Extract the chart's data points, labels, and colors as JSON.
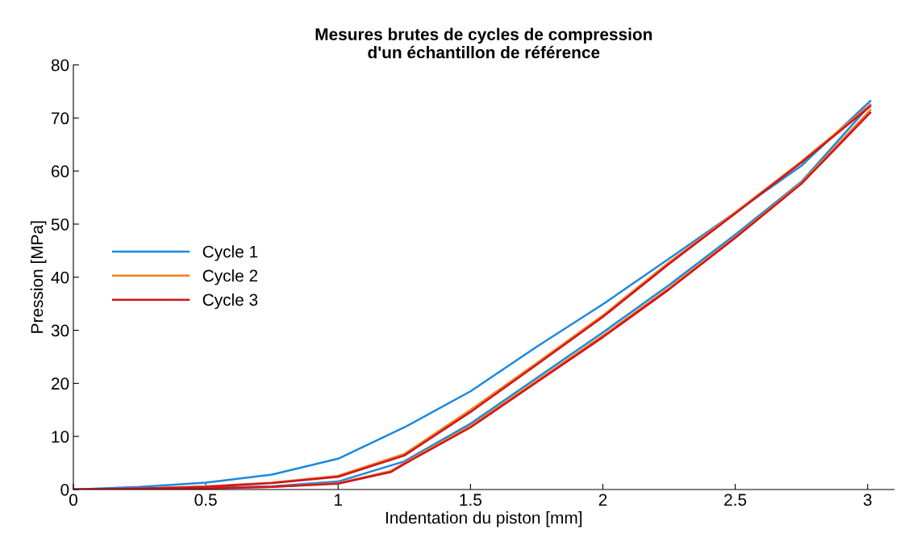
{
  "chart_data": {
    "type": "line",
    "title": "Mesures brutes de cycles de compression\nd'un échantillon de référence",
    "xlabel": "Indentation du piston [mm]",
    "ylabel": "Pression [MPa]",
    "xlim": [
      0,
      3.1
    ],
    "xticks": [
      0,
      0.5,
      1,
      1.5,
      2,
      2.5,
      3
    ],
    "ylim": [
      0,
      80
    ],
    "yticks": [
      0,
      10,
      20,
      30,
      40,
      50,
      60,
      70,
      80
    ],
    "grid": false,
    "legend": "left",
    "marker": "none",
    "line_style": "solid",
    "series": [
      {
        "name": "Cycle 1",
        "color": "#1a88e0",
        "x": [
          0,
          0.25,
          0.5,
          0.75,
          1,
          1.25,
          1.5,
          1.75,
          2,
          2.25,
          2.5,
          2.75,
          3.01
        ],
        "values": [
          0,
          0.5,
          1.3,
          2.8,
          5.8,
          11.7,
          18.5,
          26.9,
          34.9,
          43.5,
          52.2,
          61,
          73.2
        ]
      },
      {
        "color": "#1a88e0",
        "x": [
          0,
          0.25,
          0.5,
          0.75,
          1,
          1.25,
          1.5,
          1.75,
          2,
          2.25,
          2.5,
          2.75,
          3.01
        ],
        "values": [
          0,
          0.1,
          0.3,
          0.6,
          1.5,
          5.3,
          12.4,
          21,
          29.6,
          38.5,
          48,
          58,
          72.5
        ]
      },
      {
        "name": "Cycle 2",
        "color": "#f07f1e",
        "x": [
          0,
          0.25,
          0.5,
          0.75,
          1,
          1.25,
          1.5,
          1.75,
          2,
          2.25,
          2.5,
          2.75,
          3.01
        ],
        "values": [
          0,
          0.2,
          0.6,
          1.3,
          2.6,
          6.7,
          15,
          23.8,
          32.8,
          42.8,
          52.2,
          61.8,
          72.5
        ]
      },
      {
        "color": "#f07f1e",
        "x": [
          0,
          0.25,
          0.5,
          0.75,
          1,
          1.2,
          1.25,
          1.5,
          1.75,
          2,
          2.25,
          2.5,
          2.75,
          3.01
        ],
        "values": [
          0,
          0.1,
          0.2,
          0.5,
          1.2,
          3.5,
          5,
          12,
          20.5,
          29,
          38,
          47.6,
          57.8,
          71.5
        ]
      },
      {
        "name": "Cycle 3",
        "color": "#d0141e",
        "x": [
          0,
          0.25,
          0.5,
          0.75,
          1,
          1.25,
          1.5,
          1.75,
          2,
          2.25,
          2.5,
          2.75,
          3.01
        ],
        "values": [
          0,
          0.2,
          0.5,
          1.2,
          2.4,
          6.4,
          14.6,
          23.5,
          32.5,
          42.5,
          52,
          61.6,
          72.2
        ]
      },
      {
        "color": "#d0141e",
        "x": [
          0,
          0.25,
          0.5,
          0.75,
          1,
          1.2,
          1.25,
          1.5,
          1.75,
          2,
          2.25,
          2.5,
          2.75,
          3.01
        ],
        "values": [
          0,
          0.1,
          0.2,
          0.5,
          1.1,
          3.3,
          4.8,
          11.7,
          20.2,
          28.7,
          37.7,
          47.4,
          57.6,
          71
        ]
      }
    ]
  }
}
